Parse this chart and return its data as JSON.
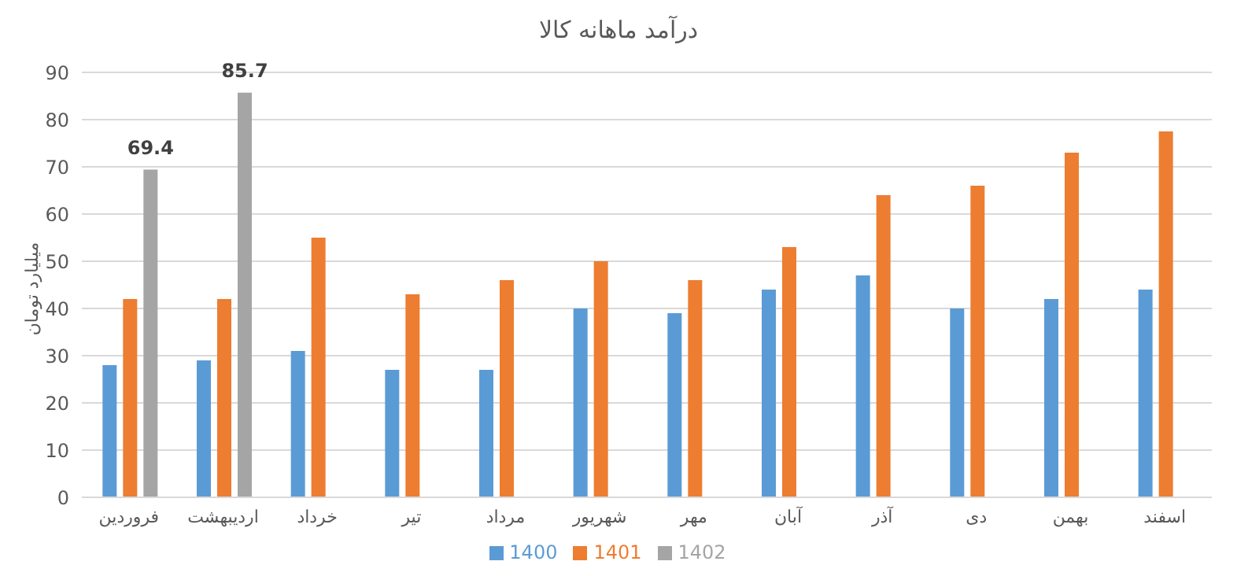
{
  "chart_data": {
    "type": "bar",
    "title": "درآمد ماهانه کالا",
    "ylabel": "میلیارد تومان",
    "categories": [
      "فروردین",
      "اردیبهشت",
      "خرداد",
      "تیر",
      "مرداد",
      "شهریور",
      "مهر",
      "آبان",
      "آذر",
      "دی",
      "بهمن",
      "اسفند"
    ],
    "series": [
      {
        "name": "1400",
        "color": "#5b9bd5",
        "values": [
          28,
          29,
          31,
          27,
          27,
          40,
          39,
          44,
          47,
          40,
          42,
          44
        ]
      },
      {
        "name": "1401",
        "color": "#ed7d31",
        "values": [
          42,
          42,
          55,
          43,
          46,
          50,
          46,
          53,
          64,
          66,
          73,
          77.5
        ]
      },
      {
        "name": "1402",
        "color": "#a5a5a5",
        "values": [
          69.4,
          85.7,
          null,
          null,
          null,
          null,
          null,
          null,
          null,
          null,
          null,
          null
        ],
        "value_labels": [
          "69.4",
          "85.7",
          null,
          null,
          null,
          null,
          null,
          null,
          null,
          null,
          null,
          null
        ]
      }
    ],
    "ylim": [
      0,
      90
    ],
    "yticks": [
      0,
      10,
      20,
      30,
      40,
      50,
      60,
      70,
      80,
      90
    ],
    "grid": "y",
    "legend": "bottom"
  }
}
